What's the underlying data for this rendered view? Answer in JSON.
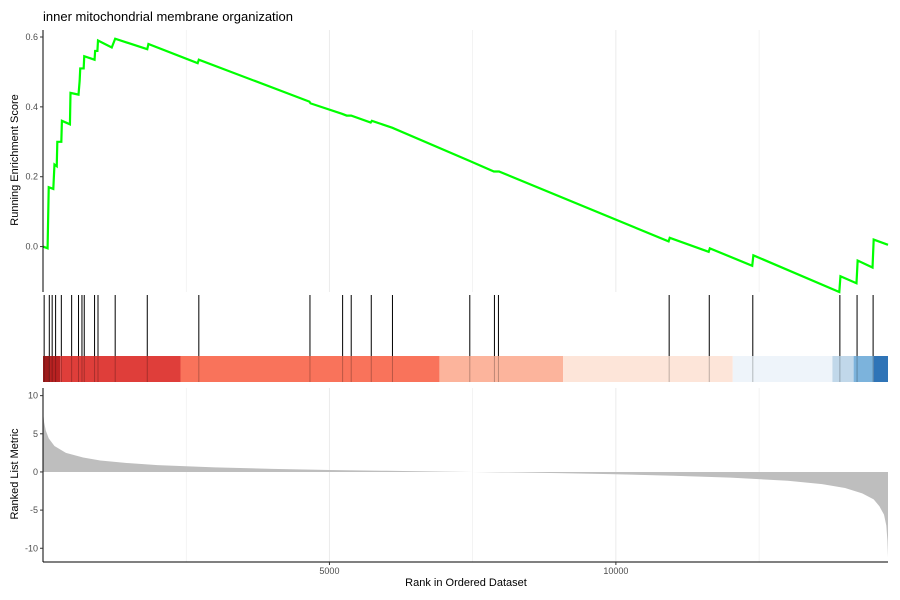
{
  "chart_data": {
    "type": "line",
    "title": "inner mitochondrial membrane organization",
    "xlabel": "Rank in Ordered Dataset",
    "x_ticks": [
      5000,
      10000
    ],
    "x_range": [
      0,
      14750
    ],
    "grid": true,
    "colors": {
      "curve": "#00ff00",
      "hit_line": "#000000",
      "metric_area": "#bebebe",
      "gridline": "#ebebeb"
    },
    "running_score": {
      "ylabel": "Running Enrichment Score",
      "y_ticks": [
        0.0,
        0.2,
        0.4,
        0.6
      ],
      "y_tick_labels": [
        "0.0",
        "0.2",
        "0.4",
        "0.6"
      ],
      "ylim": [
        -0.13,
        0.62
      ],
      "points": [
        [
          0,
          0.0
        ],
        [
          80,
          -0.005
        ],
        [
          100,
          0.17
        ],
        [
          180,
          0.165
        ],
        [
          200,
          0.235
        ],
        [
          240,
          0.23
        ],
        [
          250,
          0.3
        ],
        [
          320,
          0.3
        ],
        [
          330,
          0.36
        ],
        [
          470,
          0.35
        ],
        [
          480,
          0.44
        ],
        [
          620,
          0.435
        ],
        [
          640,
          0.475
        ],
        [
          650,
          0.51
        ],
        [
          710,
          0.51
        ],
        [
          720,
          0.545
        ],
        [
          900,
          0.535
        ],
        [
          910,
          0.56
        ],
        [
          950,
          0.56
        ],
        [
          960,
          0.59
        ],
        [
          1200,
          0.57
        ],
        [
          1260,
          0.595
        ],
        [
          1820,
          0.565
        ],
        [
          1840,
          0.58
        ],
        [
          2700,
          0.525
        ],
        [
          2720,
          0.535
        ],
        [
          4650,
          0.415
        ],
        [
          4670,
          0.41
        ],
        [
          5220,
          0.38
        ],
        [
          5300,
          0.375
        ],
        [
          5380,
          0.375
        ],
        [
          5720,
          0.355
        ],
        [
          5740,
          0.36
        ],
        [
          6100,
          0.34
        ],
        [
          7450,
          0.245
        ],
        [
          7870,
          0.215
        ],
        [
          7960,
          0.215
        ],
        [
          10920,
          0.015
        ],
        [
          10940,
          0.025
        ],
        [
          11620,
          -0.015
        ],
        [
          11640,
          -0.005
        ],
        [
          12380,
          -0.055
        ],
        [
          12400,
          -0.025
        ],
        [
          13900,
          -0.13
        ],
        [
          13920,
          -0.085
        ],
        [
          14200,
          -0.105
        ],
        [
          14220,
          -0.04
        ],
        [
          14480,
          -0.06
        ],
        [
          14500,
          0.02
        ],
        [
          14750,
          0.005
        ]
      ]
    },
    "hit_positions": [
      20,
      110,
      160,
      220,
      320,
      500,
      620,
      680,
      720,
      900,
      960,
      1260,
      1820,
      2720,
      4660,
      5230,
      5380,
      5730,
      6100,
      7450,
      7880,
      7950,
      10930,
      11630,
      12390,
      13910,
      14210,
      14490
    ],
    "color_bands": [
      {
        "from": 0,
        "to": 120,
        "color": "#9e1c1c"
      },
      {
        "from": 120,
        "to": 300,
        "color": "#b82222"
      },
      {
        "from": 300,
        "to": 2400,
        "color": "#df3e3a"
      },
      {
        "from": 2400,
        "to": 6920,
        "color": "#f9735b"
      },
      {
        "from": 6920,
        "to": 9080,
        "color": "#fcb49c"
      },
      {
        "from": 9080,
        "to": 12040,
        "color": "#fde5d9"
      },
      {
        "from": 12040,
        "to": 13780,
        "color": "#eef4fa"
      },
      {
        "from": 13780,
        "to": 14150,
        "color": "#c1d8ea"
      },
      {
        "from": 14150,
        "to": 14500,
        "color": "#7cb3dc"
      },
      {
        "from": 14500,
        "to": 14750,
        "color": "#2f74b7"
      }
    ],
    "ranked_metric": {
      "ylabel": "Ranked List Metric",
      "y_ticks": [
        10,
        5,
        0,
        -5,
        -10
      ],
      "y_tick_labels": [
        "10",
        "5",
        "0",
        "-5",
        "-10"
      ],
      "ylim": [
        -11.8,
        11.0
      ],
      "points": [
        [
          0,
          7.9
        ],
        [
          20,
          6.5
        ],
        [
          50,
          5.4
        ],
        [
          100,
          4.4
        ],
        [
          200,
          3.4
        ],
        [
          400,
          2.5
        ],
        [
          700,
          1.9
        ],
        [
          1000,
          1.5
        ],
        [
          1500,
          1.15
        ],
        [
          2000,
          0.9
        ],
        [
          3000,
          0.6
        ],
        [
          4000,
          0.4
        ],
        [
          5000,
          0.25
        ],
        [
          6000,
          0.15
        ],
        [
          7000,
          0.05
        ],
        [
          8000,
          -0.05
        ],
        [
          9000,
          -0.15
        ],
        [
          10000,
          -0.3
        ],
        [
          11000,
          -0.5
        ],
        [
          12000,
          -0.75
        ],
        [
          13000,
          -1.15
        ],
        [
          13600,
          -1.6
        ],
        [
          14000,
          -2.1
        ],
        [
          14300,
          -2.8
        ],
        [
          14500,
          -3.6
        ],
        [
          14600,
          -4.5
        ],
        [
          14680,
          -5.6
        ],
        [
          14720,
          -7.0
        ],
        [
          14740,
          -9.0
        ],
        [
          14750,
          -11.2
        ]
      ]
    }
  }
}
